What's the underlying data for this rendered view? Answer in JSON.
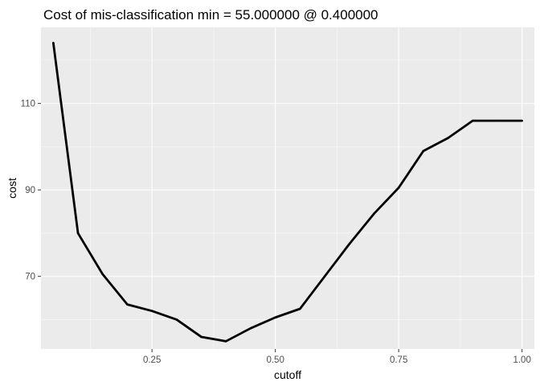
{
  "chart_data": {
    "type": "line",
    "title": "Cost of mis-classification min = 55.000000 @ 0.400000",
    "xlabel": "cutoff",
    "ylabel": "cost",
    "xlim": [
      0.025,
      1.025
    ],
    "ylim": [
      53.2,
      127.6
    ],
    "x_ticks": [
      {
        "value": 0.25,
        "label": "0.25"
      },
      {
        "value": 0.5,
        "label": "0.50"
      },
      {
        "value": 0.75,
        "label": "0.75"
      },
      {
        "value": 1.0,
        "label": "1.00"
      }
    ],
    "y_ticks": [
      {
        "value": 70,
        "label": "70"
      },
      {
        "value": 90,
        "label": "90"
      },
      {
        "value": 110,
        "label": "110"
      }
    ],
    "x_minor": [
      0.125,
      0.375,
      0.625,
      0.875
    ],
    "y_minor": [
      60,
      80,
      100,
      120
    ],
    "grid": true,
    "legend": "none",
    "series": [
      {
        "name": "cost",
        "color": "#000000",
        "x": [
          0.05,
          0.1,
          0.15,
          0.2,
          0.25,
          0.3,
          0.35,
          0.4,
          0.45,
          0.5,
          0.55,
          0.6,
          0.65,
          0.7,
          0.75,
          0.8,
          0.85,
          0.9,
          0.95,
          1.0
        ],
        "y": [
          124,
          80,
          70.5,
          63.5,
          62,
          60,
          56,
          55,
          58,
          60.5,
          62.5,
          70,
          77.5,
          84.5,
          90.5,
          99,
          102,
          106,
          106,
          106
        ]
      }
    ]
  },
  "colors": {
    "panel": "#ebebeb",
    "grid_major": "#ffffff",
    "tick": "#333333",
    "line": "#000000"
  }
}
